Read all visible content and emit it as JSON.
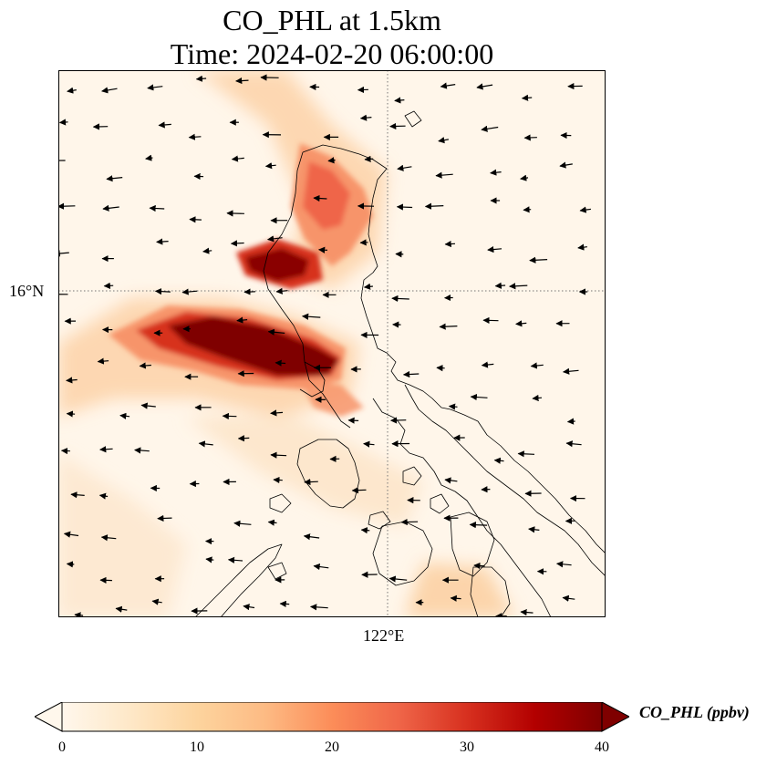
{
  "title": {
    "line1": "CO_PHL at 1.5km",
    "line2": "Time: 2024-02-20 06:00:00"
  },
  "map": {
    "gridlines": {
      "lat_label": "16°N",
      "lon_label": "122°E",
      "style": "dotted"
    },
    "layers": [
      "co-concentration-field",
      "coastline",
      "wind-vectors"
    ]
  },
  "colorbar": {
    "label": "CO_PHL (ppbv)",
    "colormap": "OrRd",
    "range": [
      0,
      40
    ],
    "extend": "both",
    "ticks": [
      "0",
      "10",
      "20",
      "30",
      "40"
    ],
    "colors": [
      "#fff7ec",
      "#fee8c8",
      "#fdd49e",
      "#fdbb84",
      "#fc8d59",
      "#ef6548",
      "#d7301f",
      "#b30000",
      "#7f0000"
    ]
  }
}
